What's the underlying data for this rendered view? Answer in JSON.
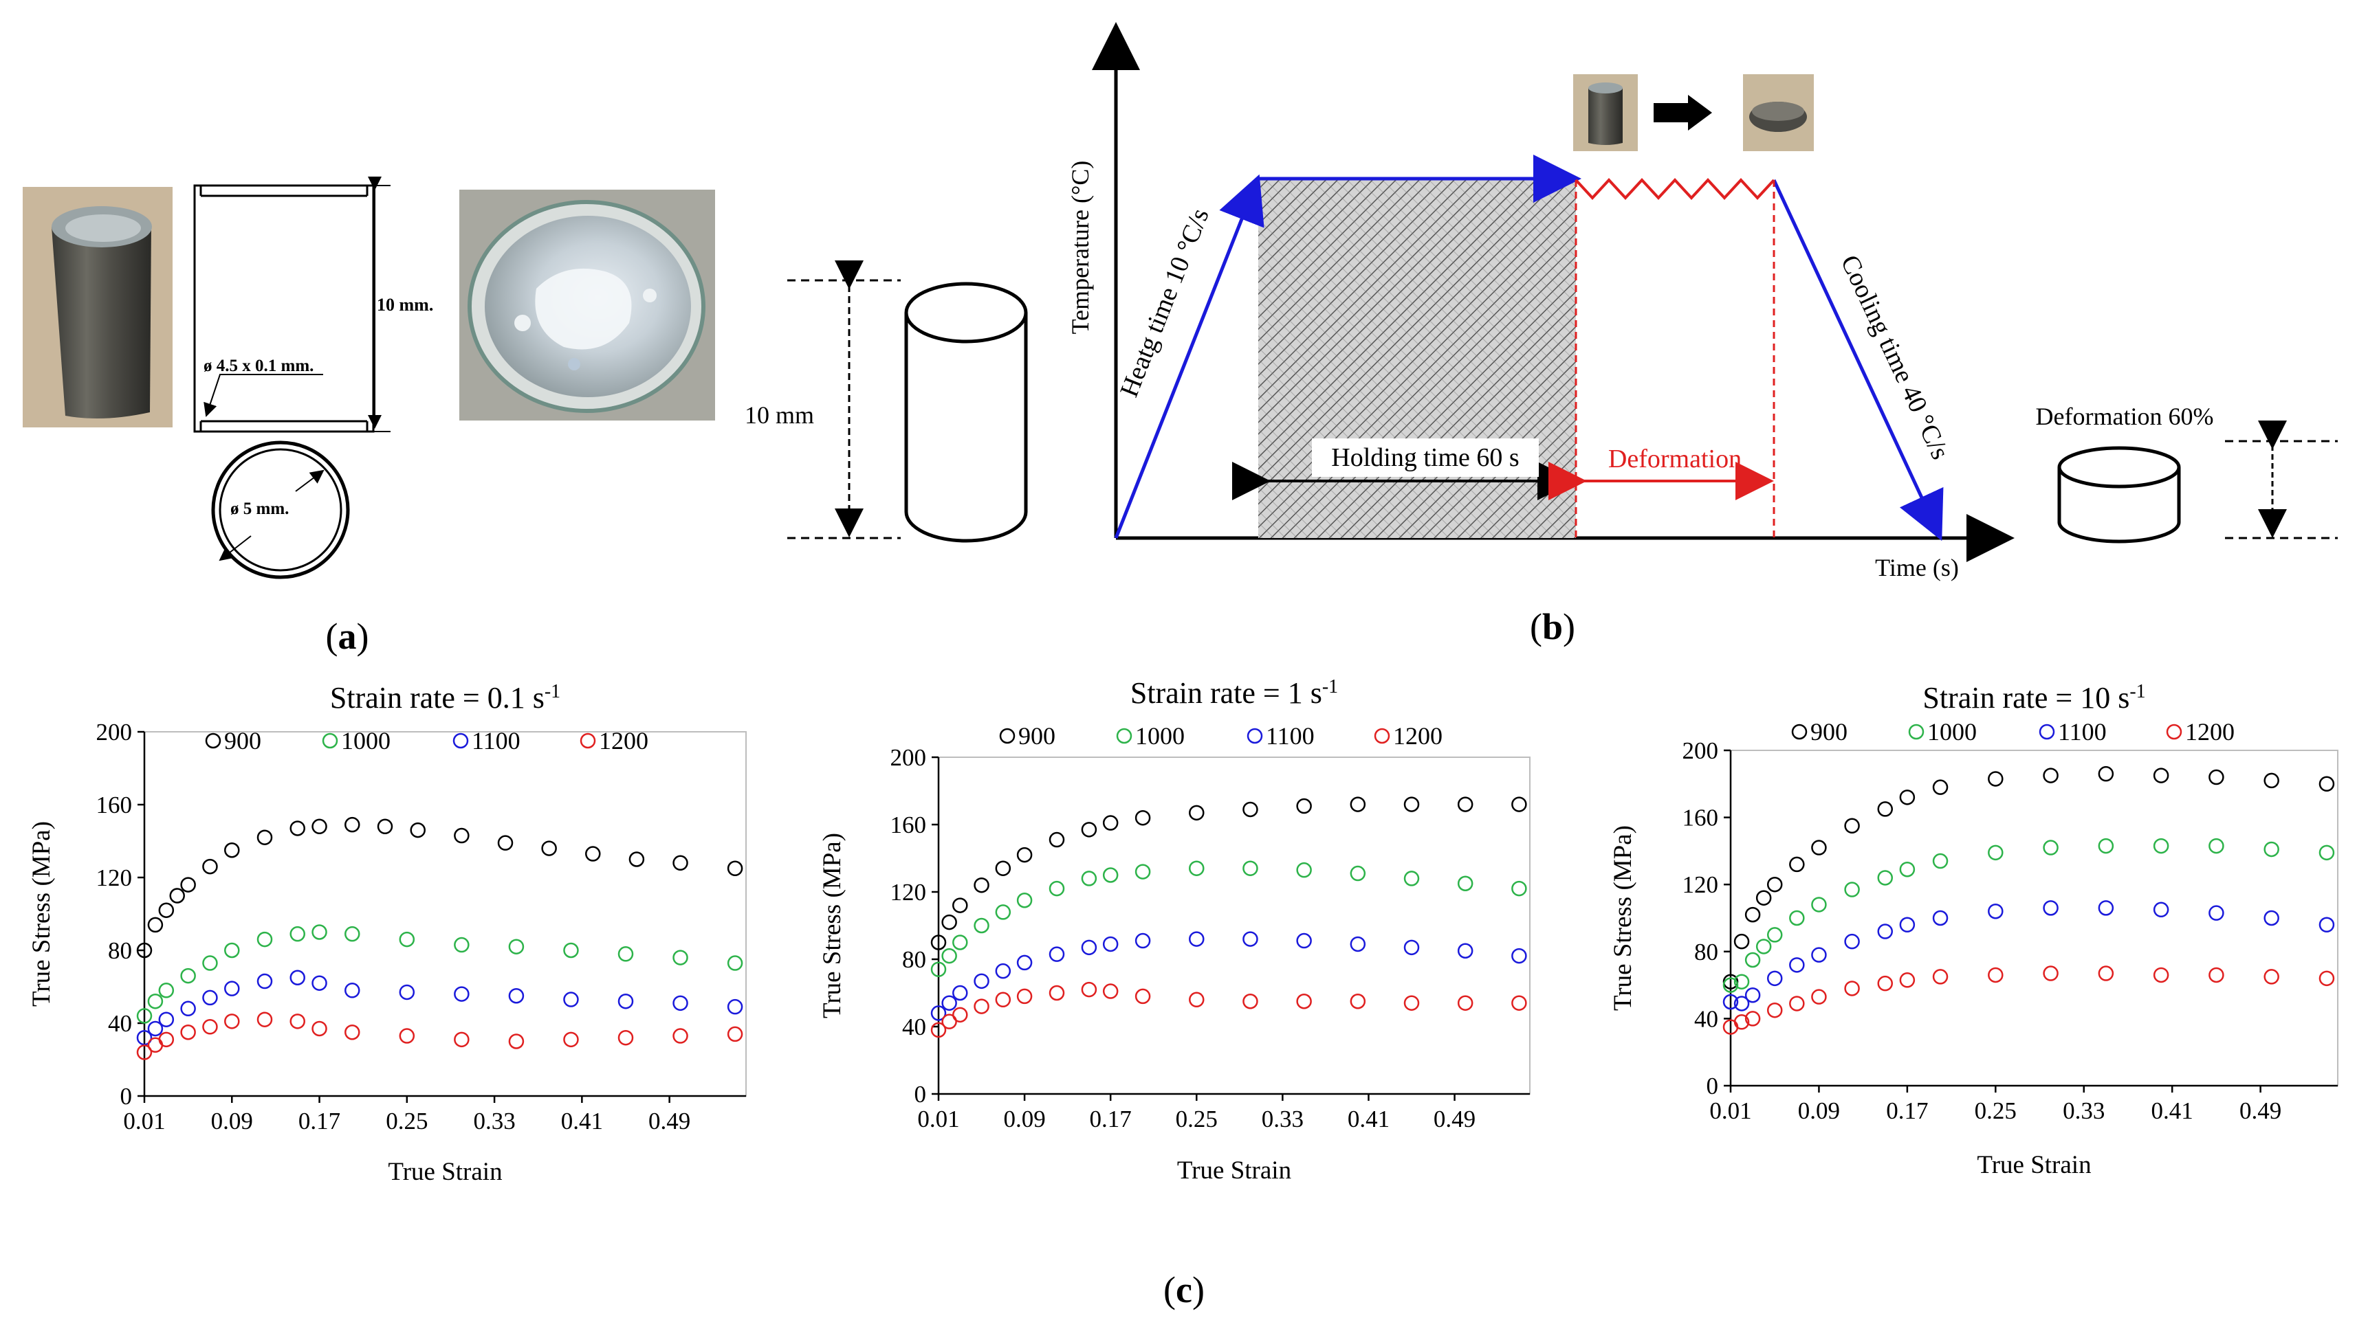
{
  "panel_a": {
    "label": "a",
    "dim_height": "10 mm.",
    "dim_tube": "ø 4.5 x 0.1 mm.",
    "dim_circle": "ø 5 mm."
  },
  "panel_b": {
    "label": "b",
    "specimen_height": "10 mm",
    "y_axis": "Temperature (°C)",
    "x_axis": "Time (s)",
    "heating": "Heatg time 10 °C/s",
    "holding": "Holding time 60 s",
    "deformation": "Deformation",
    "cooling": "Cooling time 40 °C/s",
    "deformation_pct": "Deformation 60%"
  },
  "panel_c": {
    "label": "c"
  },
  "chart_data": [
    {
      "type": "scatter",
      "title": "Strain rate = 0.1 s",
      "title_sup": "-1",
      "xlabel": "True Strain",
      "ylabel": "True Stress (MPa)",
      "xlim": [
        0.01,
        0.56
      ],
      "ylim": [
        0,
        200
      ],
      "xticks": [
        "0.01",
        "0.09",
        "0.17",
        "0.25",
        "0.33",
        "0.41",
        "0.49"
      ],
      "yticks": [
        "0",
        "40",
        "80",
        "120",
        "160",
        "200"
      ],
      "legend_position": "top",
      "series": [
        {
          "name": "900",
          "color": "#000000",
          "x": [
            0.01,
            0.02,
            0.03,
            0.04,
            0.05,
            0.07,
            0.09,
            0.12,
            0.15,
            0.17,
            0.2,
            0.23,
            0.26,
            0.3,
            0.34,
            0.38,
            0.42,
            0.46,
            0.5,
            0.55
          ],
          "y": [
            80,
            94,
            102,
            110,
            116,
            126,
            135,
            142,
            147,
            148,
            149,
            148,
            146,
            143,
            139,
            136,
            133,
            130,
            128,
            125
          ]
        },
        {
          "name": "1000",
          "color": "#2db34a",
          "x": [
            0.01,
            0.02,
            0.03,
            0.05,
            0.07,
            0.09,
            0.12,
            0.15,
            0.17,
            0.2,
            0.25,
            0.3,
            0.35,
            0.4,
            0.45,
            0.5,
            0.55
          ],
          "y": [
            44,
            52,
            58,
            66,
            73,
            80,
            86,
            89,
            90,
            89,
            86,
            83,
            82,
            80,
            78,
            76,
            73
          ]
        },
        {
          "name": "1100",
          "color": "#1a1adb",
          "x": [
            0.01,
            0.02,
            0.03,
            0.05,
            0.07,
            0.09,
            0.12,
            0.15,
            0.17,
            0.2,
            0.25,
            0.3,
            0.35,
            0.4,
            0.45,
            0.5,
            0.55
          ],
          "y": [
            32,
            37,
            42,
            48,
            54,
            59,
            63,
            65,
            62,
            58,
            57,
            56,
            55,
            53,
            52,
            51,
            49
          ]
        },
        {
          "name": "1200",
          "color": "#e02020",
          "x": [
            0.01,
            0.02,
            0.03,
            0.05,
            0.07,
            0.09,
            0.12,
            0.15,
            0.17,
            0.2,
            0.25,
            0.3,
            0.35,
            0.4,
            0.45,
            0.5,
            0.55
          ],
          "y": [
            24,
            28,
            31,
            35,
            38,
            41,
            42,
            41,
            37,
            35,
            33,
            31,
            30,
            31,
            32,
            33,
            34
          ]
        }
      ]
    },
    {
      "type": "scatter",
      "title": "Strain rate = 1 s",
      "title_sup": "-1",
      "xlabel": "True Strain",
      "ylabel": "True Stress (MPa)",
      "xlim": [
        0.01,
        0.56
      ],
      "ylim": [
        0,
        200
      ],
      "xticks": [
        "0.01",
        "0.09",
        "0.17",
        "0.25",
        "0.33",
        "0.41",
        "0.49"
      ],
      "yticks": [
        "0",
        "40",
        "80",
        "120",
        "160",
        "200"
      ],
      "legend_position": "top",
      "series": [
        {
          "name": "900",
          "color": "#000000",
          "x": [
            0.01,
            0.02,
            0.03,
            0.05,
            0.07,
            0.09,
            0.12,
            0.15,
            0.17,
            0.2,
            0.25,
            0.3,
            0.35,
            0.4,
            0.45,
            0.5,
            0.55
          ],
          "y": [
            90,
            102,
            112,
            124,
            134,
            142,
            151,
            157,
            161,
            164,
            167,
            169,
            171,
            172,
            172,
            172,
            172
          ]
        },
        {
          "name": "1000",
          "color": "#2db34a",
          "x": [
            0.01,
            0.02,
            0.03,
            0.05,
            0.07,
            0.09,
            0.12,
            0.15,
            0.17,
            0.2,
            0.25,
            0.3,
            0.35,
            0.4,
            0.45,
            0.5,
            0.55
          ],
          "y": [
            74,
            82,
            90,
            100,
            108,
            115,
            122,
            128,
            130,
            132,
            134,
            134,
            133,
            131,
            128,
            125,
            122
          ]
        },
        {
          "name": "1100",
          "color": "#1a1adb",
          "x": [
            0.01,
            0.02,
            0.03,
            0.05,
            0.07,
            0.09,
            0.12,
            0.15,
            0.17,
            0.2,
            0.25,
            0.3,
            0.35,
            0.4,
            0.45,
            0.5,
            0.55
          ],
          "y": [
            48,
            54,
            60,
            67,
            73,
            78,
            83,
            87,
            89,
            91,
            92,
            92,
            91,
            89,
            87,
            85,
            82
          ]
        },
        {
          "name": "1200",
          "color": "#e02020",
          "x": [
            0.01,
            0.02,
            0.03,
            0.05,
            0.07,
            0.09,
            0.12,
            0.15,
            0.17,
            0.2,
            0.25,
            0.3,
            0.35,
            0.4,
            0.45,
            0.5,
            0.55
          ],
          "y": [
            38,
            43,
            47,
            52,
            56,
            58,
            60,
            62,
            61,
            58,
            56,
            55,
            55,
            55,
            54,
            54,
            54
          ]
        }
      ]
    },
    {
      "type": "scatter",
      "title": "Strain rate = 10 s",
      "title_sup": "-1",
      "xlabel": "True Strain",
      "ylabel": "True Stress (MPa)",
      "xlim": [
        0.01,
        0.56
      ],
      "ylim": [
        0,
        200
      ],
      "xticks": [
        "0.01",
        "0.09",
        "0.17",
        "0.25",
        "0.33",
        "0.41",
        "0.49"
      ],
      "yticks": [
        "0",
        "40",
        "80",
        "120",
        "160",
        "200"
      ],
      "legend_position": "top",
      "series": [
        {
          "name": "900",
          "color": "#000000",
          "x": [
            0.01,
            0.02,
            0.03,
            0.04,
            0.05,
            0.07,
            0.09,
            0.12,
            0.15,
            0.17,
            0.2,
            0.25,
            0.3,
            0.35,
            0.4,
            0.45,
            0.5,
            0.55
          ],
          "y": [
            62,
            86,
            102,
            112,
            120,
            132,
            142,
            155,
            165,
            172,
            178,
            183,
            185,
            186,
            185,
            184,
            182,
            180
          ]
        },
        {
          "name": "1000",
          "color": "#2db34a",
          "x": [
            0.01,
            0.02,
            0.03,
            0.04,
            0.05,
            0.07,
            0.09,
            0.12,
            0.15,
            0.17,
            0.2,
            0.25,
            0.3,
            0.35,
            0.4,
            0.45,
            0.5,
            0.55
          ],
          "y": [
            60,
            62,
            75,
            83,
            90,
            100,
            108,
            117,
            124,
            129,
            134,
            139,
            142,
            143,
            143,
            143,
            141,
            139
          ]
        },
        {
          "name": "1100",
          "color": "#1a1adb",
          "x": [
            0.01,
            0.02,
            0.03,
            0.05,
            0.07,
            0.09,
            0.12,
            0.15,
            0.17,
            0.2,
            0.25,
            0.3,
            0.35,
            0.4,
            0.45,
            0.5,
            0.55
          ],
          "y": [
            50,
            49,
            54,
            64,
            72,
            78,
            86,
            92,
            96,
            100,
            104,
            106,
            106,
            105,
            103,
            100,
            96
          ]
        },
        {
          "name": "1200",
          "color": "#e02020",
          "x": [
            0.01,
            0.02,
            0.03,
            0.05,
            0.07,
            0.09,
            0.12,
            0.15,
            0.17,
            0.2,
            0.25,
            0.3,
            0.35,
            0.4,
            0.45,
            0.5,
            0.55
          ],
          "y": [
            35,
            38,
            40,
            45,
            49,
            53,
            58,
            61,
            63,
            65,
            66,
            67,
            67,
            66,
            66,
            65,
            64
          ]
        }
      ]
    }
  ]
}
